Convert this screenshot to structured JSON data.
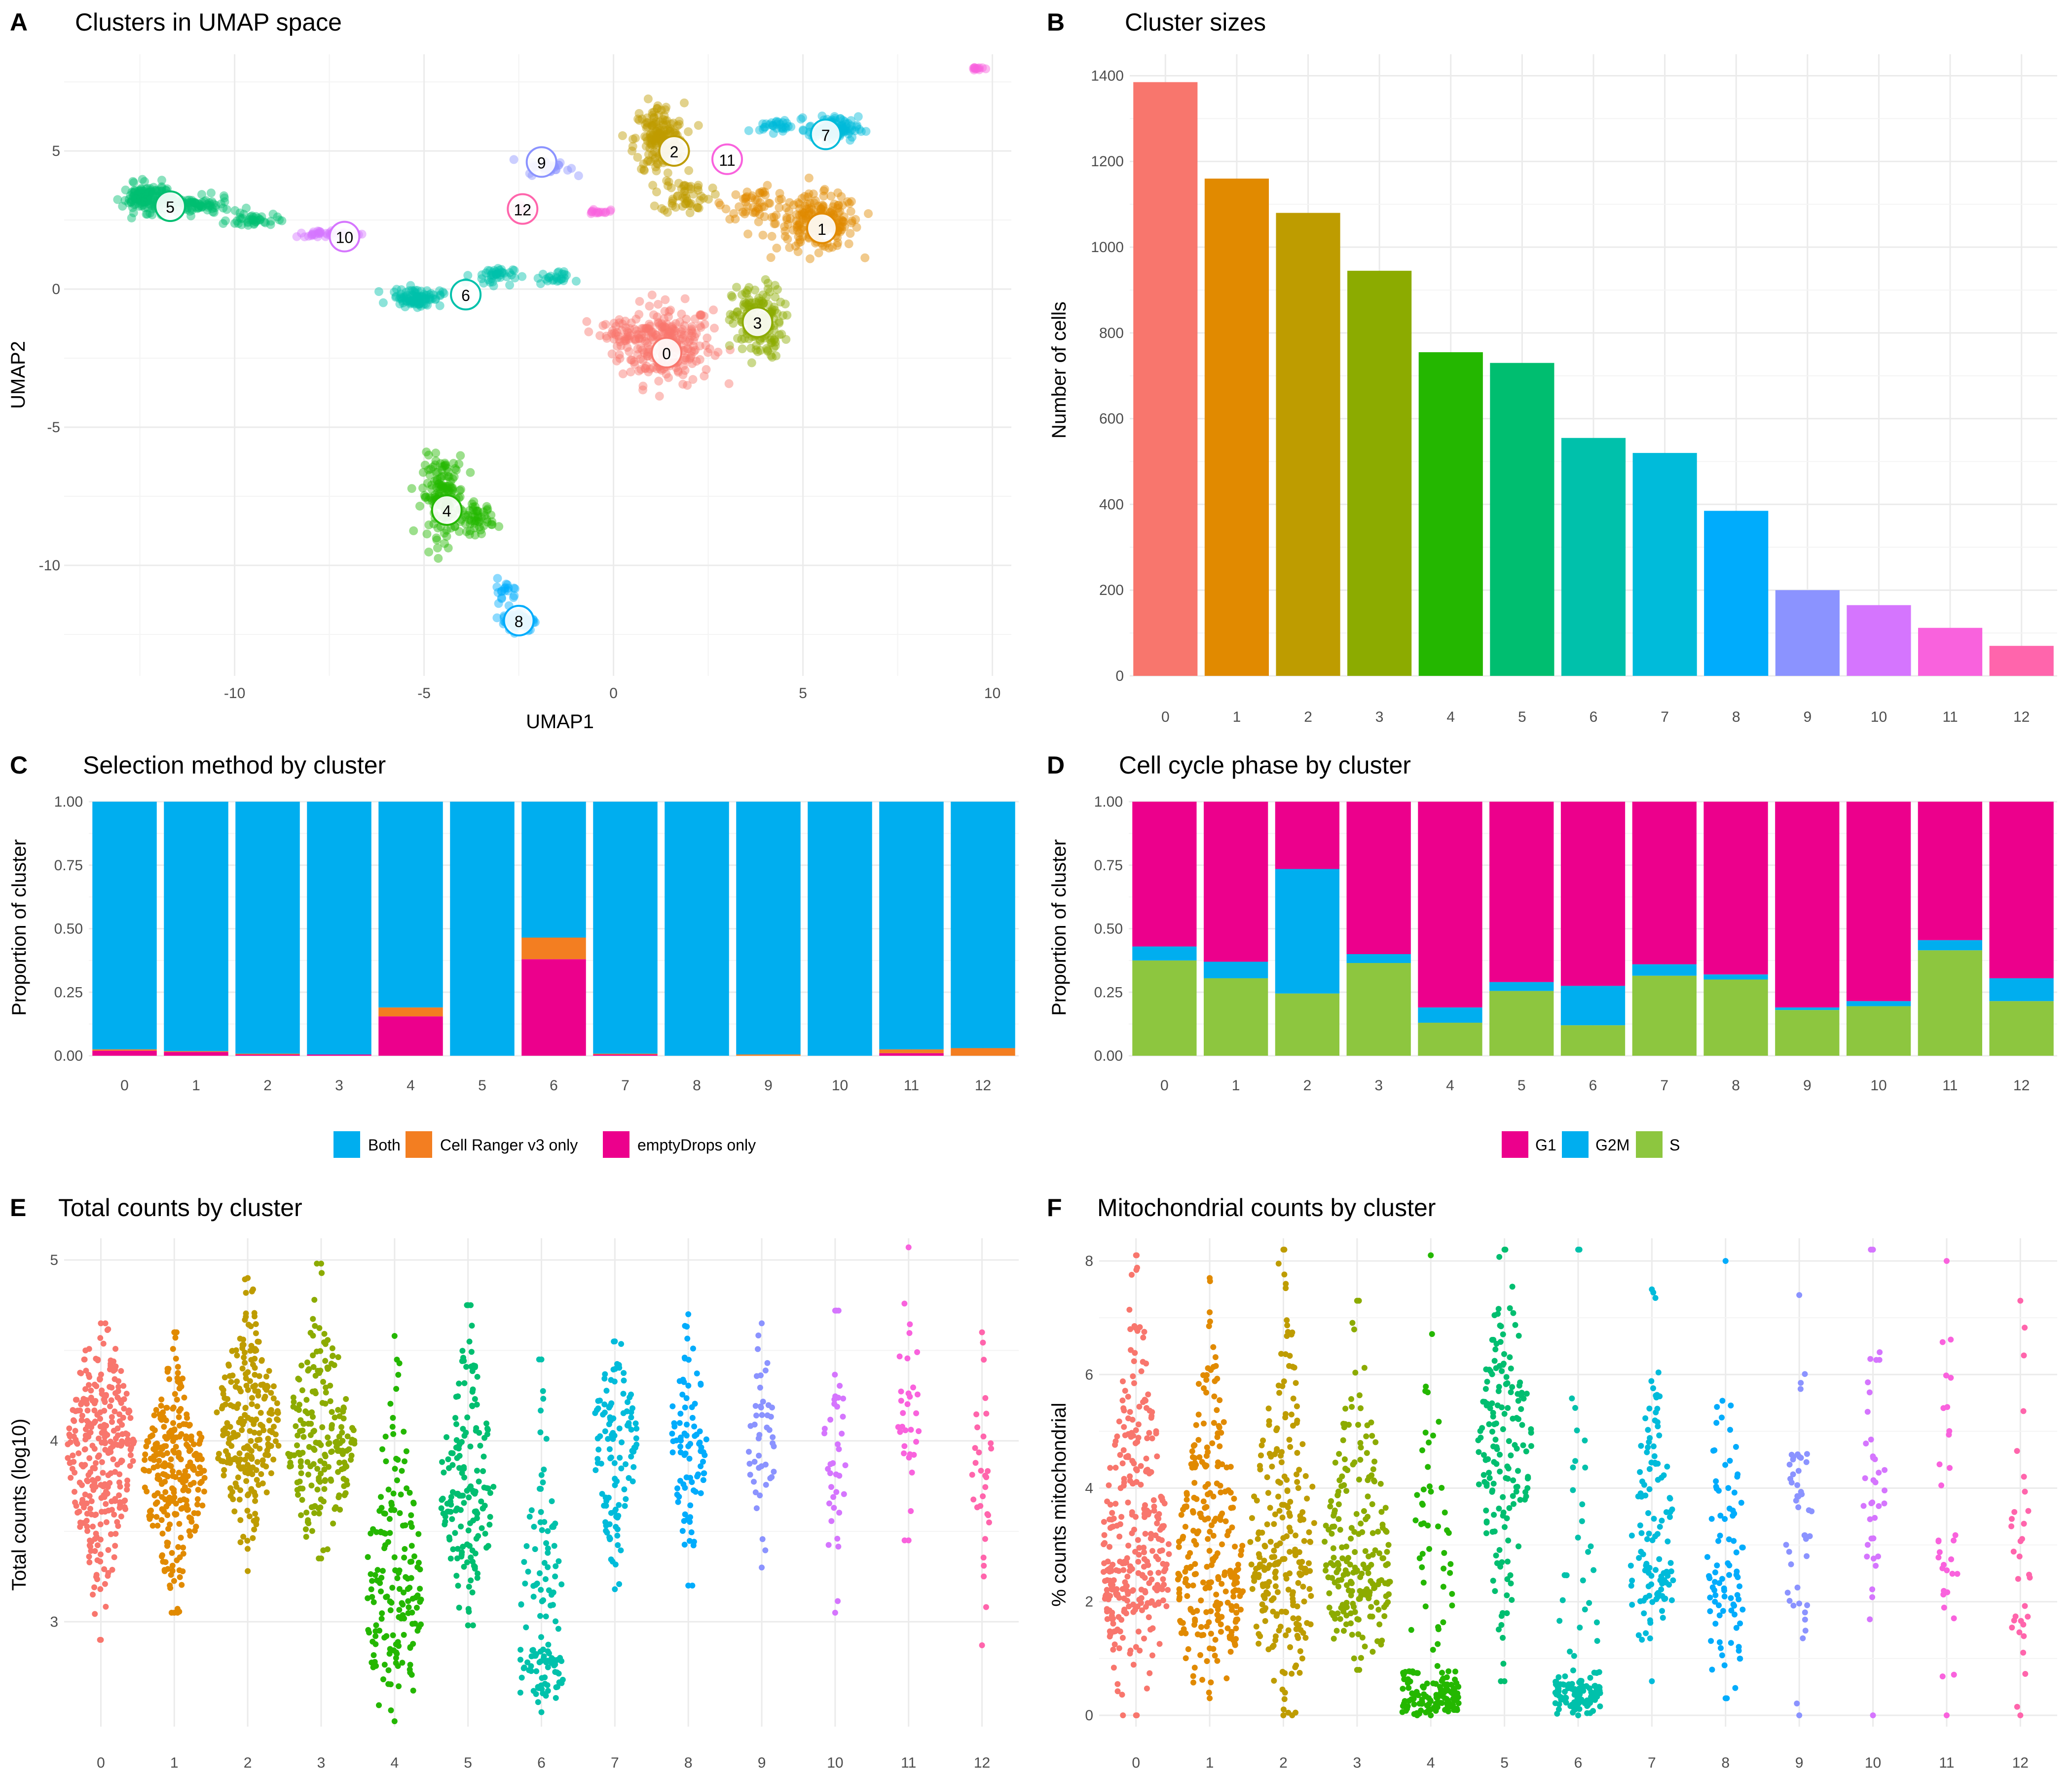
{
  "colors": {
    "clusters": [
      "#F8766D",
      "#E18A00",
      "#BE9C00",
      "#8CAB00",
      "#24B700",
      "#00BE70",
      "#00C1AB",
      "#00BBDA",
      "#00ACFC",
      "#8B93FF",
      "#D575FE",
      "#F962DD",
      "#FF65AC"
    ],
    "both": "#00AEEF",
    "cellranger": "#F37E21",
    "emptydrops": "#EC008C",
    "g1": "#EC008C",
    "g2m": "#00AEEF",
    "s": "#8DC63F"
  },
  "panels": {
    "A": {
      "letter": "A",
      "title": "Clusters in UMAP space",
      "xlabel": "UMAP1",
      "ylabel": "UMAP2"
    },
    "B": {
      "letter": "B",
      "title": "Cluster sizes",
      "ylabel": "Number of cells"
    },
    "C": {
      "letter": "C",
      "title": "Selection method by cluster",
      "ylabel": "Proportion of cluster",
      "legend": [
        "Both",
        "Cell Ranger v3 only",
        "emptyDrops only"
      ]
    },
    "D": {
      "letter": "D",
      "title": "Cell cycle phase by cluster",
      "ylabel": "Proportion of cluster",
      "legend": [
        "G1",
        "G2M",
        "S"
      ]
    },
    "E": {
      "letter": "E",
      "title": "Total counts by cluster",
      "ylabel": "Total counts (log10)"
    },
    "F": {
      "letter": "F",
      "title": "Mitochondrial counts by cluster",
      "ylabel": "% counts mitochondrial"
    }
  },
  "chart_data": [
    {
      "id": "A",
      "type": "scatter",
      "title": "Clusters in UMAP space",
      "xlabel": "UMAP1",
      "ylabel": "UMAP2",
      "xlim": [
        -14.5,
        10.5
      ],
      "ylim": [
        -14,
        8.5
      ],
      "xticks": [
        -10,
        -5,
        0,
        5,
        10
      ],
      "yticks": [
        -10,
        -5,
        0,
        5
      ],
      "cluster_labels": [
        {
          "label": "0",
          "x": 1.4,
          "y": -2.3
        },
        {
          "label": "1",
          "x": 5.5,
          "y": 2.2
        },
        {
          "label": "2",
          "x": 1.6,
          "y": 5.0
        },
        {
          "label": "3",
          "x": 3.8,
          "y": -1.2
        },
        {
          "label": "4",
          "x": -4.4,
          "y": -8.0
        },
        {
          "label": "5",
          "x": -11.7,
          "y": 3.0
        },
        {
          "label": "6",
          "x": -3.9,
          "y": -0.2
        },
        {
          "label": "7",
          "x": 5.6,
          "y": 5.6
        },
        {
          "label": "8",
          "x": -2.5,
          "y": -12.0
        },
        {
          "label": "9",
          "x": -1.9,
          "y": 4.6
        },
        {
          "label": "10",
          "x": -7.1,
          "y": 1.9
        },
        {
          "label": "11",
          "x": 3.0,
          "y": 4.7
        },
        {
          "label": "12",
          "x": -2.4,
          "y": 2.9
        }
      ]
    },
    {
      "id": "B",
      "type": "bar",
      "title": "Cluster sizes",
      "xlabel": "",
      "ylabel": "Number of cells",
      "categories": [
        "0",
        "1",
        "2",
        "3",
        "4",
        "5",
        "6",
        "7",
        "8",
        "9",
        "10",
        "11",
        "12"
      ],
      "values": [
        1385,
        1160,
        1080,
        945,
        755,
        730,
        555,
        520,
        385,
        200,
        165,
        112,
        70
      ],
      "ylim": [
        0,
        1450
      ],
      "yticks": [
        0,
        200,
        400,
        600,
        800,
        1000,
        1200,
        1400
      ]
    },
    {
      "id": "C",
      "type": "bar",
      "stacked": true,
      "title": "Selection method by cluster",
      "xlabel": "",
      "ylabel": "Proportion of cluster",
      "categories": [
        "0",
        "1",
        "2",
        "3",
        "4",
        "5",
        "6",
        "7",
        "8",
        "9",
        "10",
        "11",
        "12"
      ],
      "ylim": [
        0,
        1
      ],
      "yticks": [
        "0.00",
        "0.25",
        "0.50",
        "0.75",
        "1.00"
      ],
      "legend_position": "bottom",
      "series": [
        {
          "name": "emptyDrops only",
          "values": [
            0.02,
            0.015,
            0.005,
            0.005,
            0.155,
            0,
            0.38,
            0.005,
            0,
            0,
            0,
            0.01,
            0
          ]
        },
        {
          "name": "Cell Ranger v3 only",
          "values": [
            0.005,
            0.003,
            0.003,
            0,
            0.035,
            0,
            0.085,
            0.003,
            0,
            0.005,
            0,
            0.015,
            0.03
          ]
        },
        {
          "name": "Both",
          "values": [
            0.975,
            0.982,
            0.992,
            0.995,
            0.81,
            1.0,
            0.535,
            0.992,
            1.0,
            0.995,
            1.0,
            0.975,
            0.97
          ]
        }
      ]
    },
    {
      "id": "D",
      "type": "bar",
      "stacked": true,
      "title": "Cell cycle phase by cluster",
      "xlabel": "",
      "ylabel": "Proportion of cluster",
      "categories": [
        "0",
        "1",
        "2",
        "3",
        "4",
        "5",
        "6",
        "7",
        "8",
        "9",
        "10",
        "11",
        "12"
      ],
      "ylim": [
        0,
        1
      ],
      "yticks": [
        "0.00",
        "0.25",
        "0.50",
        "0.75",
        "1.00"
      ],
      "legend_position": "bottom",
      "series": [
        {
          "name": "S",
          "values": [
            0.375,
            0.305,
            0.245,
            0.365,
            0.13,
            0.255,
            0.12,
            0.315,
            0.3,
            0.18,
            0.195,
            0.415,
            0.215
          ]
        },
        {
          "name": "G2M",
          "values": [
            0.055,
            0.065,
            0.49,
            0.035,
            0.06,
            0.035,
            0.155,
            0.045,
            0.02,
            0.01,
            0.02,
            0.04,
            0.09
          ]
        },
        {
          "name": "G1",
          "values": [
            0.57,
            0.63,
            0.265,
            0.6,
            0.81,
            0.71,
            0.725,
            0.64,
            0.68,
            0.81,
            0.785,
            0.545,
            0.695
          ]
        }
      ]
    },
    {
      "id": "E",
      "type": "scatter",
      "title": "Total counts by cluster",
      "xlabel": "",
      "ylabel": "Total counts (log10)",
      "categories": [
        "0",
        "1",
        "2",
        "3",
        "4",
        "5",
        "6",
        "7",
        "8",
        "9",
        "10",
        "11",
        "12"
      ],
      "ylim": [
        2.42,
        5.12
      ],
      "yticks": [
        3,
        4,
        5
      ],
      "summary": [
        {
          "cluster": "0",
          "min": 2.9,
          "center": 3.95,
          "max": 4.65
        },
        {
          "cluster": "1",
          "min": 3.05,
          "center": 3.82,
          "max": 4.6
        },
        {
          "cluster": "2",
          "min": 3.28,
          "center": 4.07,
          "max": 4.9
        },
        {
          "cluster": "3",
          "min": 3.35,
          "center": 4.0,
          "max": 4.98
        },
        {
          "cluster": "4",
          "min": 2.45,
          "center": 3.15,
          "max": 4.58
        },
        {
          "cluster": "5",
          "min": 2.98,
          "center": 3.75,
          "max": 4.75
        },
        {
          "cluster": "6",
          "min": 2.5,
          "center": 2.85,
          "max": 4.45
        },
        {
          "cluster": "7",
          "min": 3.18,
          "center": 4.0,
          "max": 4.55
        },
        {
          "cluster": "8",
          "min": 3.2,
          "center": 4.0,
          "max": 4.7
        },
        {
          "cluster": "9",
          "min": 3.3,
          "center": 3.95,
          "max": 4.65
        },
        {
          "cluster": "10",
          "min": 3.05,
          "center": 3.9,
          "max": 4.72
        },
        {
          "cluster": "11",
          "min": 3.45,
          "center": 4.2,
          "max": 5.07
        },
        {
          "cluster": "12",
          "min": 2.87,
          "center": 3.8,
          "max": 4.6
        }
      ]
    },
    {
      "id": "F",
      "type": "scatter",
      "title": "Mitochondrial counts by cluster",
      "xlabel": "",
      "ylabel": "% counts mitochondrial",
      "categories": [
        "0",
        "1",
        "2",
        "3",
        "4",
        "5",
        "6",
        "7",
        "8",
        "9",
        "10",
        "11",
        "12"
      ],
      "ylim": [
        -0.2,
        8.4
      ],
      "yticks": [
        0,
        2,
        4,
        6,
        8
      ],
      "summary": [
        {
          "cluster": "0",
          "min": 0.0,
          "center": 2.8,
          "max": 8.1
        },
        {
          "cluster": "1",
          "min": 0.3,
          "center": 2.5,
          "max": 7.7
        },
        {
          "cluster": "2",
          "min": 0.0,
          "center": 2.9,
          "max": 8.2
        },
        {
          "cluster": "3",
          "min": 0.8,
          "center": 2.7,
          "max": 7.3
        },
        {
          "cluster": "4",
          "min": 0.0,
          "center": 0.4,
          "max": 8.1
        },
        {
          "cluster": "5",
          "min": 0.6,
          "center": 4.7,
          "max": 8.2
        },
        {
          "cluster": "6",
          "min": 0.0,
          "center": 0.6,
          "max": 8.2
        },
        {
          "cluster": "7",
          "min": 0.6,
          "center": 2.8,
          "max": 7.5
        },
        {
          "cluster": "8",
          "min": 0.3,
          "center": 2.5,
          "max": 8.0
        },
        {
          "cluster": "9",
          "min": 0.0,
          "center": 3.1,
          "max": 7.4
        },
        {
          "cluster": "10",
          "min": 0.0,
          "center": 4.4,
          "max": 8.2
        },
        {
          "cluster": "11",
          "min": 0.0,
          "center": 3.0,
          "max": 8.0
        },
        {
          "cluster": "12",
          "min": 0.0,
          "center": 2.7,
          "max": 7.3
        }
      ]
    }
  ]
}
